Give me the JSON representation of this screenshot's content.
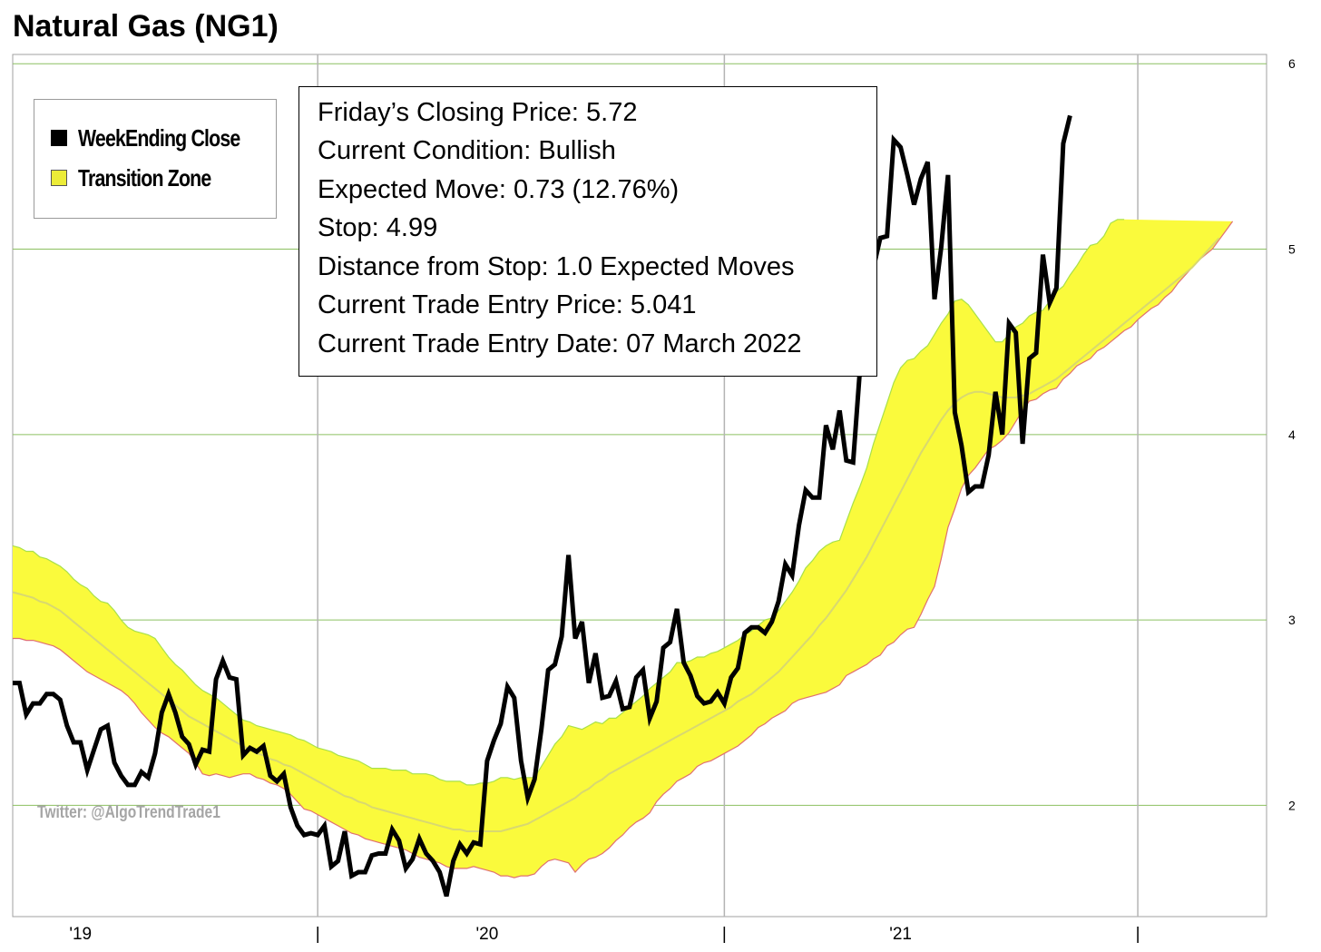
{
  "title": "Natural Gas (NG1)",
  "legend": {
    "items": [
      {
        "label": "WeekEnding Close",
        "color": "#000000"
      },
      {
        "label": "Transition Zone",
        "color": "#f0f040"
      }
    ]
  },
  "info_box": {
    "lines": [
      "Friday’s Closing Price: 5.72",
      "Current Condition: Bullish",
      "Expected Move: 0.73 (12.76%)",
      "Stop: 4.99",
      "Distance from Stop: 1.0 Expected Moves",
      "Current Trade Entry Price: 5.041",
      "Current Trade Entry Date: 07 March 2022"
    ]
  },
  "watermark": "Twitter: @AlgoTrendTrade1",
  "colors": {
    "price_line": "#000000",
    "zone_fill": "#fafa3c",
    "zone_upper_edge": "#a8e04a",
    "zone_lower_edge": "#e07070",
    "zone_mid": "#d8d870",
    "grid_horizontal": "#8cc060",
    "grid_vertical": "#b4b4b4"
  },
  "chart_data": {
    "type": "line",
    "title": "Natural Gas (NG1)",
    "xlabel": "",
    "ylabel": "",
    "ylim": [
      1.4,
      6.05
    ],
    "yticks": [
      2,
      3,
      4,
      5,
      6
    ],
    "xlim": [
      0,
      185
    ],
    "x_tick_labels": [
      {
        "x": 10,
        "label": "'19"
      },
      {
        "x": 45,
        "label": "|"
      },
      {
        "x": 70,
        "label": "'20"
      },
      {
        "x": 105,
        "label": "|"
      },
      {
        "x": 131,
        "label": "'21"
      },
      {
        "x": 166,
        "label": "|"
      }
    ],
    "vertical_gridlines_x": [
      45,
      105,
      166
    ],
    "grid": true,
    "legend_position": "top-left",
    "series": [
      {
        "name": "WeekEnding Close",
        "values": [
          2.66,
          2.66,
          2.49,
          2.55,
          2.55,
          2.6,
          2.6,
          2.57,
          2.43,
          2.34,
          2.34,
          2.19,
          2.3,
          2.41,
          2.43,
          2.23,
          2.16,
          2.11,
          2.11,
          2.18,
          2.15,
          2.28,
          2.5,
          2.6,
          2.5,
          2.37,
          2.33,
          2.22,
          2.3,
          2.29,
          2.68,
          2.78,
          2.69,
          2.68,
          2.27,
          2.31,
          2.29,
          2.32,
          2.16,
          2.13,
          2.17,
          1.99,
          1.89,
          1.84,
          1.85,
          1.84,
          1.89,
          1.67,
          1.7,
          1.86,
          1.62,
          1.64,
          1.64,
          1.73,
          1.74,
          1.74,
          1.87,
          1.81,
          1.66,
          1.71,
          1.82,
          1.74,
          1.7,
          1.64,
          1.51,
          1.7,
          1.79,
          1.74,
          1.8,
          1.79,
          2.24,
          2.35,
          2.44,
          2.64,
          2.58,
          2.24,
          2.04,
          2.14,
          2.41,
          2.73,
          2.76,
          2.91,
          3.35,
          2.9,
          2.99,
          2.66,
          2.82,
          2.58,
          2.59,
          2.67,
          2.52,
          2.53,
          2.69,
          2.73,
          2.47,
          2.56,
          2.85,
          2.88,
          3.06,
          2.77,
          2.7,
          2.59,
          2.55,
          2.56,
          2.61,
          2.55,
          2.69,
          2.74,
          2.93,
          2.96,
          2.96,
          2.93,
          2.99,
          3.1,
          3.3,
          3.24,
          3.51,
          3.7,
          3.66,
          3.66,
          4.05,
          3.92,
          4.13,
          3.86,
          3.85,
          4.35,
          4.66,
          4.9,
          5.06,
          5.07,
          5.59,
          5.55,
          5.4,
          5.24,
          5.38,
          5.47,
          4.73,
          5.01,
          5.4,
          4.12,
          3.94,
          3.69,
          3.72,
          3.72,
          3.89,
          4.23,
          4.0,
          4.6,
          4.55,
          3.95,
          4.41,
          4.44,
          4.97,
          4.71,
          4.79,
          5.57,
          5.72
        ]
      },
      {
        "name": "",
        "values": [
          3.4,
          3.39,
          3.37,
          3.37,
          3.34,
          3.33,
          3.31,
          3.29,
          3.26,
          3.22,
          3.19,
          3.17,
          3.13,
          3.1,
          3.09,
          3.05,
          3.0,
          2.96,
          2.94,
          2.93,
          2.92,
          2.9,
          2.85,
          2.8,
          2.76,
          2.73,
          2.69,
          2.65,
          2.62,
          2.6,
          2.58,
          2.55,
          2.52,
          2.49,
          2.46,
          2.45,
          2.43,
          2.42,
          2.41,
          2.4,
          2.39,
          2.38,
          2.36,
          2.35,
          2.33,
          2.31,
          2.3,
          2.29,
          2.27,
          2.26,
          2.25,
          2.24,
          2.22,
          2.2,
          2.2,
          2.2,
          2.19,
          2.19,
          2.19,
          2.17,
          2.17,
          2.17,
          2.16,
          2.14,
          2.13,
          2.13,
          2.13,
          2.11,
          2.11,
          2.12,
          2.12,
          2.13,
          2.15,
          2.15,
          2.14,
          2.15,
          2.15,
          2.15,
          2.21,
          2.27,
          2.33,
          2.37,
          2.43,
          2.42,
          2.41,
          2.43,
          2.45,
          2.44,
          2.47,
          2.47,
          2.5,
          2.53,
          2.56,
          2.59,
          2.63,
          2.66,
          2.69,
          2.72,
          2.77,
          2.77,
          2.78,
          2.8,
          2.8,
          2.82,
          2.83,
          2.85,
          2.87,
          2.89,
          2.92,
          2.94,
          2.97,
          3.0,
          3.01,
          3.05,
          3.1,
          3.15,
          3.21,
          3.28,
          3.32,
          3.37,
          3.4,
          3.42,
          3.43,
          3.53,
          3.63,
          3.72,
          3.82,
          3.95,
          4.06,
          4.17,
          4.28,
          4.36,
          4.4,
          4.41,
          4.45,
          4.48,
          4.54,
          4.6,
          4.65,
          4.72,
          4.73,
          4.7,
          4.65,
          4.6,
          4.55,
          4.5,
          4.5,
          4.54,
          4.58,
          4.6,
          4.64,
          4.66,
          4.67,
          4.72,
          4.77,
          4.8,
          4.86,
          4.91,
          4.97,
          5.02,
          5.03,
          5.07,
          5.14,
          5.16,
          5.16
        ]
      },
      {
        "name": "",
        "values": [
          3.15,
          3.14,
          3.13,
          3.12,
          3.1,
          3.09,
          3.07,
          3.05,
          3.02,
          2.99,
          2.96,
          2.93,
          2.9,
          2.87,
          2.84,
          2.81,
          2.78,
          2.75,
          2.72,
          2.69,
          2.66,
          2.63,
          2.6,
          2.57,
          2.54,
          2.51,
          2.48,
          2.46,
          2.44,
          2.42,
          2.4,
          2.38,
          2.36,
          2.34,
          2.32,
          2.3,
          2.28,
          2.27,
          2.25,
          2.24,
          2.22,
          2.21,
          2.19,
          2.17,
          2.15,
          2.13,
          2.11,
          2.09,
          2.07,
          2.05,
          2.04,
          2.02,
          2.01,
          1.99,
          1.98,
          1.97,
          1.96,
          1.95,
          1.94,
          1.93,
          1.92,
          1.91,
          1.9,
          1.89,
          1.88,
          1.87,
          1.87,
          1.86,
          1.86,
          1.86,
          1.86,
          1.86,
          1.86,
          1.87,
          1.88,
          1.89,
          1.9,
          1.92,
          1.94,
          1.96,
          1.98,
          2.0,
          2.02,
          2.04,
          2.07,
          2.09,
          2.12,
          2.14,
          2.17,
          2.19,
          2.21,
          2.23,
          2.25,
          2.27,
          2.29,
          2.31,
          2.33,
          2.35,
          2.37,
          2.39,
          2.41,
          2.43,
          2.45,
          2.47,
          2.49,
          2.51,
          2.53,
          2.56,
          2.58,
          2.6,
          2.63,
          2.66,
          2.69,
          2.72,
          2.76,
          2.8,
          2.84,
          2.88,
          2.92,
          2.97,
          3.01,
          3.06,
          3.11,
          3.16,
          3.22,
          3.28,
          3.34,
          3.41,
          3.48,
          3.55,
          3.62,
          3.69,
          3.76,
          3.83,
          3.9,
          3.96,
          4.02,
          4.08,
          4.13,
          4.17,
          4.2,
          4.22,
          4.23,
          4.23,
          4.22,
          4.21,
          4.2,
          4.2,
          4.2,
          4.21,
          4.22,
          4.24,
          4.26,
          4.28,
          4.3,
          4.33,
          4.36,
          4.39,
          4.42,
          4.45,
          4.48,
          4.51,
          4.54,
          4.57,
          4.6,
          4.63,
          4.66,
          4.69,
          4.72,
          4.75,
          4.78,
          4.81,
          4.84,
          4.87,
          4.9,
          4.94,
          4.98,
          5.02,
          5.06
        ]
      },
      {
        "name": "",
        "values": [
          2.9,
          2.9,
          2.89,
          2.89,
          2.88,
          2.87,
          2.86,
          2.84,
          2.81,
          2.78,
          2.75,
          2.72,
          2.7,
          2.68,
          2.66,
          2.64,
          2.62,
          2.59,
          2.55,
          2.5,
          2.46,
          2.42,
          2.39,
          2.37,
          2.34,
          2.31,
          2.28,
          2.23,
          2.17,
          2.16,
          2.17,
          2.16,
          2.15,
          2.16,
          2.17,
          2.17,
          2.15,
          2.14,
          2.12,
          2.11,
          2.09,
          2.06,
          2.02,
          1.98,
          1.97,
          1.95,
          1.93,
          1.91,
          1.89,
          1.87,
          1.85,
          1.84,
          1.82,
          1.81,
          1.8,
          1.79,
          1.78,
          1.77,
          1.76,
          1.74,
          1.72,
          1.71,
          1.7,
          1.69,
          1.67,
          1.66,
          1.66,
          1.66,
          1.67,
          1.66,
          1.65,
          1.64,
          1.62,
          1.62,
          1.61,
          1.62,
          1.62,
          1.63,
          1.67,
          1.7,
          1.71,
          1.7,
          1.69,
          1.64,
          1.68,
          1.71,
          1.72,
          1.74,
          1.77,
          1.81,
          1.84,
          1.88,
          1.91,
          1.93,
          1.96,
          2.02,
          2.06,
          2.09,
          2.13,
          2.15,
          2.17,
          2.21,
          2.23,
          2.24,
          2.26,
          2.28,
          2.3,
          2.32,
          2.35,
          2.38,
          2.42,
          2.44,
          2.47,
          2.49,
          2.51,
          2.55,
          2.57,
          2.58,
          2.59,
          2.6,
          2.61,
          2.63,
          2.65,
          2.7,
          2.72,
          2.74,
          2.76,
          2.79,
          2.81,
          2.86,
          2.88,
          2.92,
          2.95,
          2.96,
          3.03,
          3.11,
          3.18,
          3.33,
          3.5,
          3.6,
          3.71,
          3.78,
          3.82,
          3.87,
          3.92,
          3.94,
          3.97,
          4.01,
          4.07,
          4.13,
          4.18,
          4.19,
          4.22,
          4.24,
          4.25,
          4.3,
          4.33,
          4.37,
          4.39,
          4.41,
          4.45,
          4.47,
          4.5,
          4.53,
          4.56,
          4.58,
          4.62,
          4.65,
          4.68,
          4.7,
          4.74,
          4.77,
          4.82,
          4.86,
          4.9,
          4.94,
          4.97,
          5.0,
          5.05,
          5.1,
          5.15
        ]
      }
    ]
  }
}
